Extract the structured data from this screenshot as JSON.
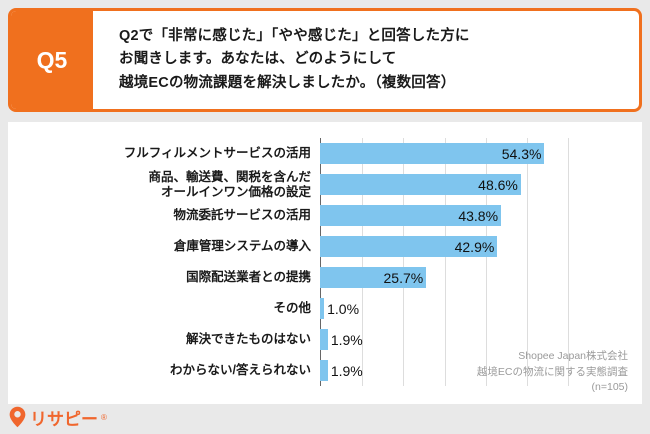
{
  "header": {
    "q_label": "Q5",
    "question_lines": [
      "Q2で「非常に感じた」「やや感じた」と回答した方に",
      "お聞きします。あなたは、どのようにして",
      "越境ECの物流課題を解決しましたか。（複数回答）"
    ]
  },
  "chart_data": {
    "type": "bar",
    "orientation": "horizontal",
    "title": "",
    "xlabel": "",
    "ylabel": "",
    "xlim": [
      0,
      60
    ],
    "grid": true,
    "bar_color": "#7fc5ee",
    "categories": [
      {
        "lines": [
          "フルフィルメントサービスの活用"
        ]
      },
      {
        "lines": [
          "商品、輸送費、関税を含んだ",
          "オールインワン価格の設定"
        ]
      },
      {
        "lines": [
          "物流委託サービスの活用"
        ]
      },
      {
        "lines": [
          "倉庫管理システムの導入"
        ]
      },
      {
        "lines": [
          "国際配送業者との提携"
        ]
      },
      {
        "lines": [
          "その他"
        ]
      },
      {
        "lines": [
          "解決できたものはない"
        ]
      },
      {
        "lines": [
          "わからない/答えられない"
        ]
      }
    ],
    "values": [
      54.3,
      48.6,
      43.8,
      42.9,
      25.7,
      1.0,
      1.9,
      1.9
    ],
    "value_labels": [
      "54.3%",
      "48.6%",
      "43.8%",
      "42.9%",
      "25.7%",
      "1.0%",
      "1.9%",
      "1.9%"
    ],
    "gridline_values": [
      10,
      20,
      30,
      40,
      50,
      60
    ]
  },
  "source": {
    "lines": [
      "Shopee Japan株式会社",
      "越境ECの物流に関する実態調査",
      "(n=105)"
    ]
  },
  "logo": {
    "text": "リサピー",
    "mark": "®"
  },
  "colors": {
    "accent_orange": "#f0701e",
    "bar_blue": "#7fc5ee",
    "page_bg": "#e9e9e9"
  }
}
